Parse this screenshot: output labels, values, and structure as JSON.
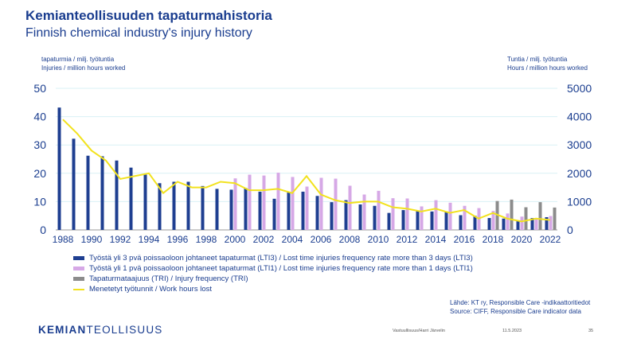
{
  "header": {
    "title": "Kemianteollisuuden tapaturmahistoria",
    "subtitle": "Finnish chemical industry's injury history"
  },
  "left_axis_note": {
    "line1": "tapaturmia / milj. työtuntia",
    "line2": "Injuries / million hours worked"
  },
  "right_axis_note": {
    "line1": "Tuntia / milj. työtuntia",
    "line2": "Hours / million hours worked"
  },
  "source": {
    "line1": "Lähde: KT ry, Responsible Care -indikaattoritiedot",
    "line2": "Source: CIFF, Responsible Care indicator data"
  },
  "footer": {
    "logo_bold": "KEMIAN",
    "logo_light": "TEOLLISUUS",
    "author": "Vastuullisuus/Harri Järvelin",
    "date": "11.5.2023",
    "page": "35"
  },
  "colors": {
    "lti3": "#1f3f91",
    "lti1": "#d6a8e6",
    "tri": "#8c8c8c",
    "hours": "#f2e21e",
    "text": "#1a3d8f",
    "grid": "#d9f0f5"
  },
  "chart_data": {
    "type": "bar",
    "x": [
      1988,
      1989,
      1990,
      1991,
      1992,
      1993,
      1994,
      1995,
      1996,
      1997,
      1998,
      1999,
      2000,
      2001,
      2002,
      2003,
      2004,
      2005,
      2006,
      2007,
      2008,
      2009,
      2010,
      2011,
      2012,
      2013,
      2014,
      2015,
      2016,
      2017,
      2018,
      2019,
      2020,
      2021,
      2022
    ],
    "x_tick_labels": [
      "1988",
      "1990",
      "1992",
      "1994",
      "1996",
      "1998",
      "2000",
      "2002",
      "2004",
      "2006",
      "2008",
      "2010",
      "2012",
      "2014",
      "2016",
      "2018",
      "2020",
      "2022"
    ],
    "y_left": {
      "lim": [
        0,
        50
      ],
      "ticks": [
        "0",
        "10",
        "20",
        "30",
        "40",
        "50"
      ]
    },
    "y_right": {
      "lim": [
        0,
        5000
      ],
      "ticks": [
        "0",
        "1000",
        "2000",
        "3000",
        "4000",
        "5000"
      ]
    },
    "grid": true,
    "legend_placement": "bottom",
    "series": [
      {
        "name": "Työstä yli 3 pvä poissaoloon johtaneet tapaturmat (LTI3) / Lost time injuries frequency rate more than 3 days (LTI3)",
        "kind": "bar",
        "axis": "left",
        "values": [
          43.2,
          32.2,
          26.2,
          26.0,
          24.5,
          22.0,
          19.5,
          16.5,
          17.0,
          17.0,
          15.5,
          14.5,
          14.2,
          14.8,
          13.5,
          11.0,
          13.2,
          13.5,
          12.0,
          9.8,
          10.5,
          9.0,
          8.5,
          6.0,
          7.0,
          6.8,
          6.5,
          6.5,
          5.2,
          5.0,
          4.2,
          4.0,
          3.2,
          4.2,
          4.5
        ]
      },
      {
        "name": "Työstä yli 1 pvä poissaoloon johtaneet tapaturmat (LTI1) / Lost time injuries frequency rate more than 1 days (LTI1)",
        "kind": "bar",
        "axis": "left",
        "values": [
          null,
          null,
          null,
          null,
          null,
          null,
          null,
          null,
          null,
          null,
          null,
          null,
          18.2,
          19.5,
          19.2,
          20.2,
          18.7,
          15.3,
          18.4,
          18.1,
          15.6,
          12.5,
          13.8,
          11.2,
          11.1,
          8.3,
          10.5,
          9.6,
          8.5,
          7.7,
          6.7,
          5.8,
          4.7,
          4.2,
          4.9
        ]
      },
      {
        "name": "Tapaturmataajuus (TRI) / Injury frequency (TRI)",
        "kind": "bar",
        "axis": "left",
        "values": [
          null,
          null,
          null,
          null,
          null,
          null,
          null,
          null,
          null,
          null,
          null,
          null,
          null,
          null,
          null,
          null,
          null,
          null,
          null,
          null,
          null,
          null,
          null,
          null,
          null,
          null,
          null,
          null,
          null,
          null,
          10.2,
          10.7,
          8.0,
          9.8,
          7.9
        ]
      },
      {
        "name": "Menetetyt työtunnit / Work hours lost",
        "kind": "line",
        "axis": "right",
        "values": [
          3900,
          3400,
          2800,
          2450,
          1800,
          1900,
          2000,
          1300,
          1700,
          1500,
          1500,
          1700,
          1650,
          1400,
          1400,
          1450,
          1300,
          1900,
          1250,
          1050,
          950,
          1000,
          1000,
          800,
          750,
          650,
          750,
          600,
          700,
          400,
          600,
          400,
          300,
          400,
          350
        ]
      }
    ]
  }
}
